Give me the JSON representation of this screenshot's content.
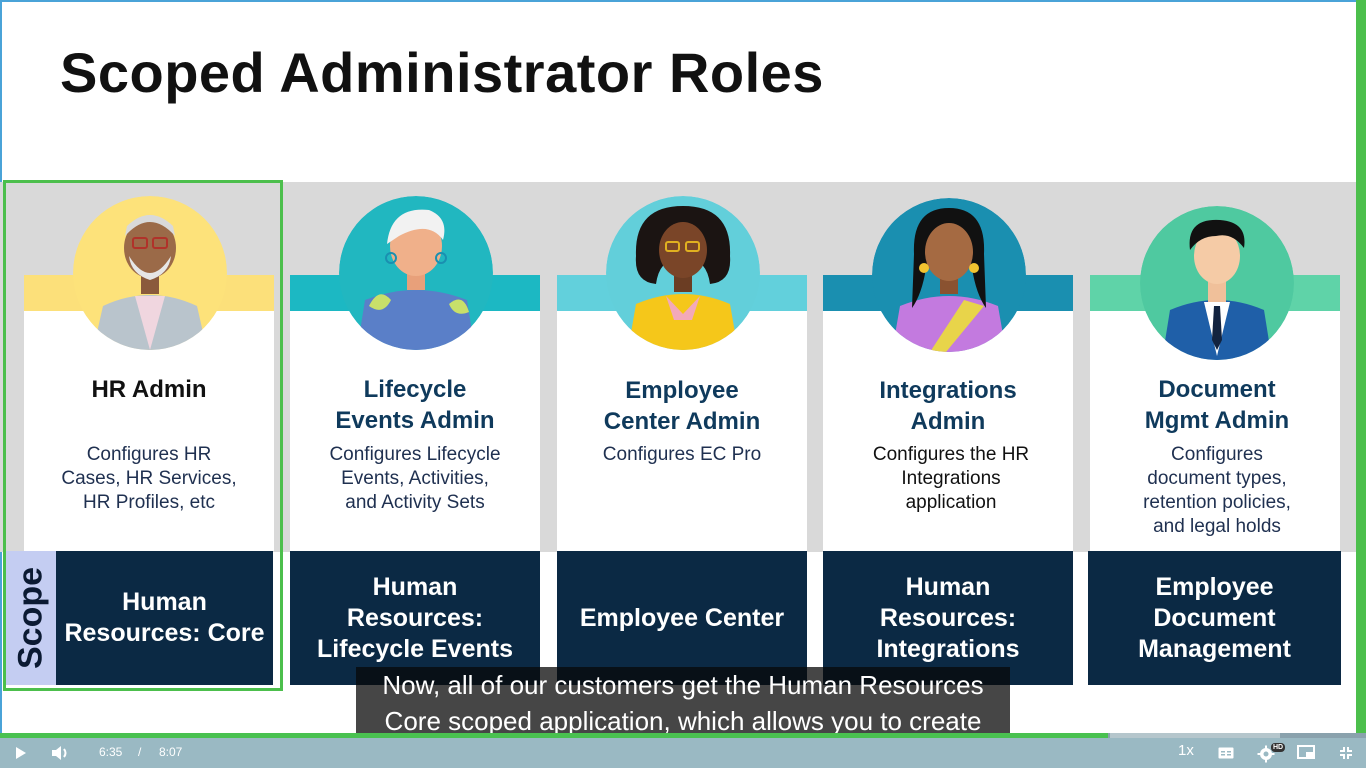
{
  "slide": {
    "title": "Scoped Administrator Roles",
    "scope_label": "Scope",
    "roles": [
      {
        "title": "HR Admin",
        "description": "Configures HR\nCases, HR Services,\nHR Profiles, etc",
        "scope": "Human\nResources: Core",
        "color": "#fce07a",
        "highlighted": true
      },
      {
        "title": "Lifecycle\nEvents Admin",
        "description": "Configures Lifecycle\nEvents, Activities,\nand Activity Sets",
        "scope": "Human\nResources:\nLifecycle Events",
        "color": "#1cb8c3"
      },
      {
        "title": "Employee\nCenter Admin",
        "description": "Configures EC Pro",
        "scope": "Employee Center",
        "color": "#62d0dc"
      },
      {
        "title": "Integrations\nAdmin",
        "description": "Configures the HR\nIntegrations\napplication",
        "scope": "Human\nResources:\nIntegrations",
        "color": "#1a8fb0"
      },
      {
        "title": "Document\nMgmt Admin",
        "description": "Configures\ndocument types,\nretention policies,\nand legal holds",
        "scope": "Employee\nDocument\nManagement",
        "color": "#5fd3a8"
      }
    ]
  },
  "caption": {
    "line1": "Now, all of our customers get the Human Resources",
    "line2": "Core scoped application, which allows you to create"
  },
  "player": {
    "current_time": "6:35",
    "separator": "/",
    "duration": "8:07",
    "played_fraction": 0.811,
    "buffered_fraction": 0.937,
    "speed": "1x",
    "hd_badge": "HD",
    "icons": [
      "play-icon",
      "volume-icon",
      "captions-icon",
      "settings-icon",
      "pip-icon",
      "exit-fullscreen-icon"
    ]
  }
}
